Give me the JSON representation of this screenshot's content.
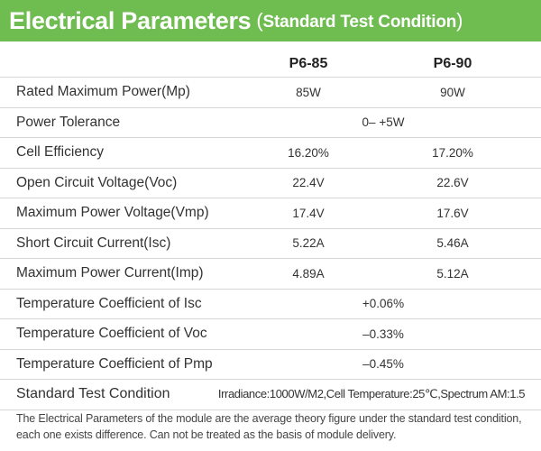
{
  "header": {
    "title": "Electrical Parameters",
    "subtitle_open": "(",
    "subtitle": "Standard Test Condition",
    "subtitle_close": ")",
    "background": "#6fbc50"
  },
  "columns": [
    "P6-85",
    "P6-90"
  ],
  "rows": [
    {
      "label": "Rated Maximum Power(Mp)",
      "values": [
        "85W",
        "90W"
      ]
    },
    {
      "label": "Power Tolerance",
      "shared": "0– +5W"
    },
    {
      "label": "Cell Efficiency",
      "values": [
        "16.20%",
        "17.20%"
      ]
    },
    {
      "label": "Open Circuit Voltage(Voc)",
      "values": [
        "22.4V",
        "22.6V"
      ]
    },
    {
      "label": "Maximum Power Voltage(Vmp)",
      "values": [
        "17.4V",
        "17.6V"
      ]
    },
    {
      "label": "Short Circuit Current(Isc)",
      "values": [
        "5.22A",
        "5.46A"
      ]
    },
    {
      "label": "Maximum Power Current(Imp)",
      "values": [
        "4.89A",
        "5.12A"
      ]
    },
    {
      "label": "Temperature Coefficient of Isc",
      "shared": "+0.06%"
    },
    {
      "label": "Temperature Coefficient of Voc",
      "shared": "–0.33%"
    },
    {
      "label": "Temperature Coefficient of Pmp",
      "shared": "–0.45%"
    }
  ],
  "standard_test_condition": {
    "label": "Standard Test Condition",
    "value": "Irradiance:1000W/M2,Cell Temperature:25℃,Spectrum AM:1.5"
  },
  "footnote": "The Electrical Parameters of the module are the average theory figure under the standard test condition, each one exists difference. Can not be treated as the basis of module delivery."
}
